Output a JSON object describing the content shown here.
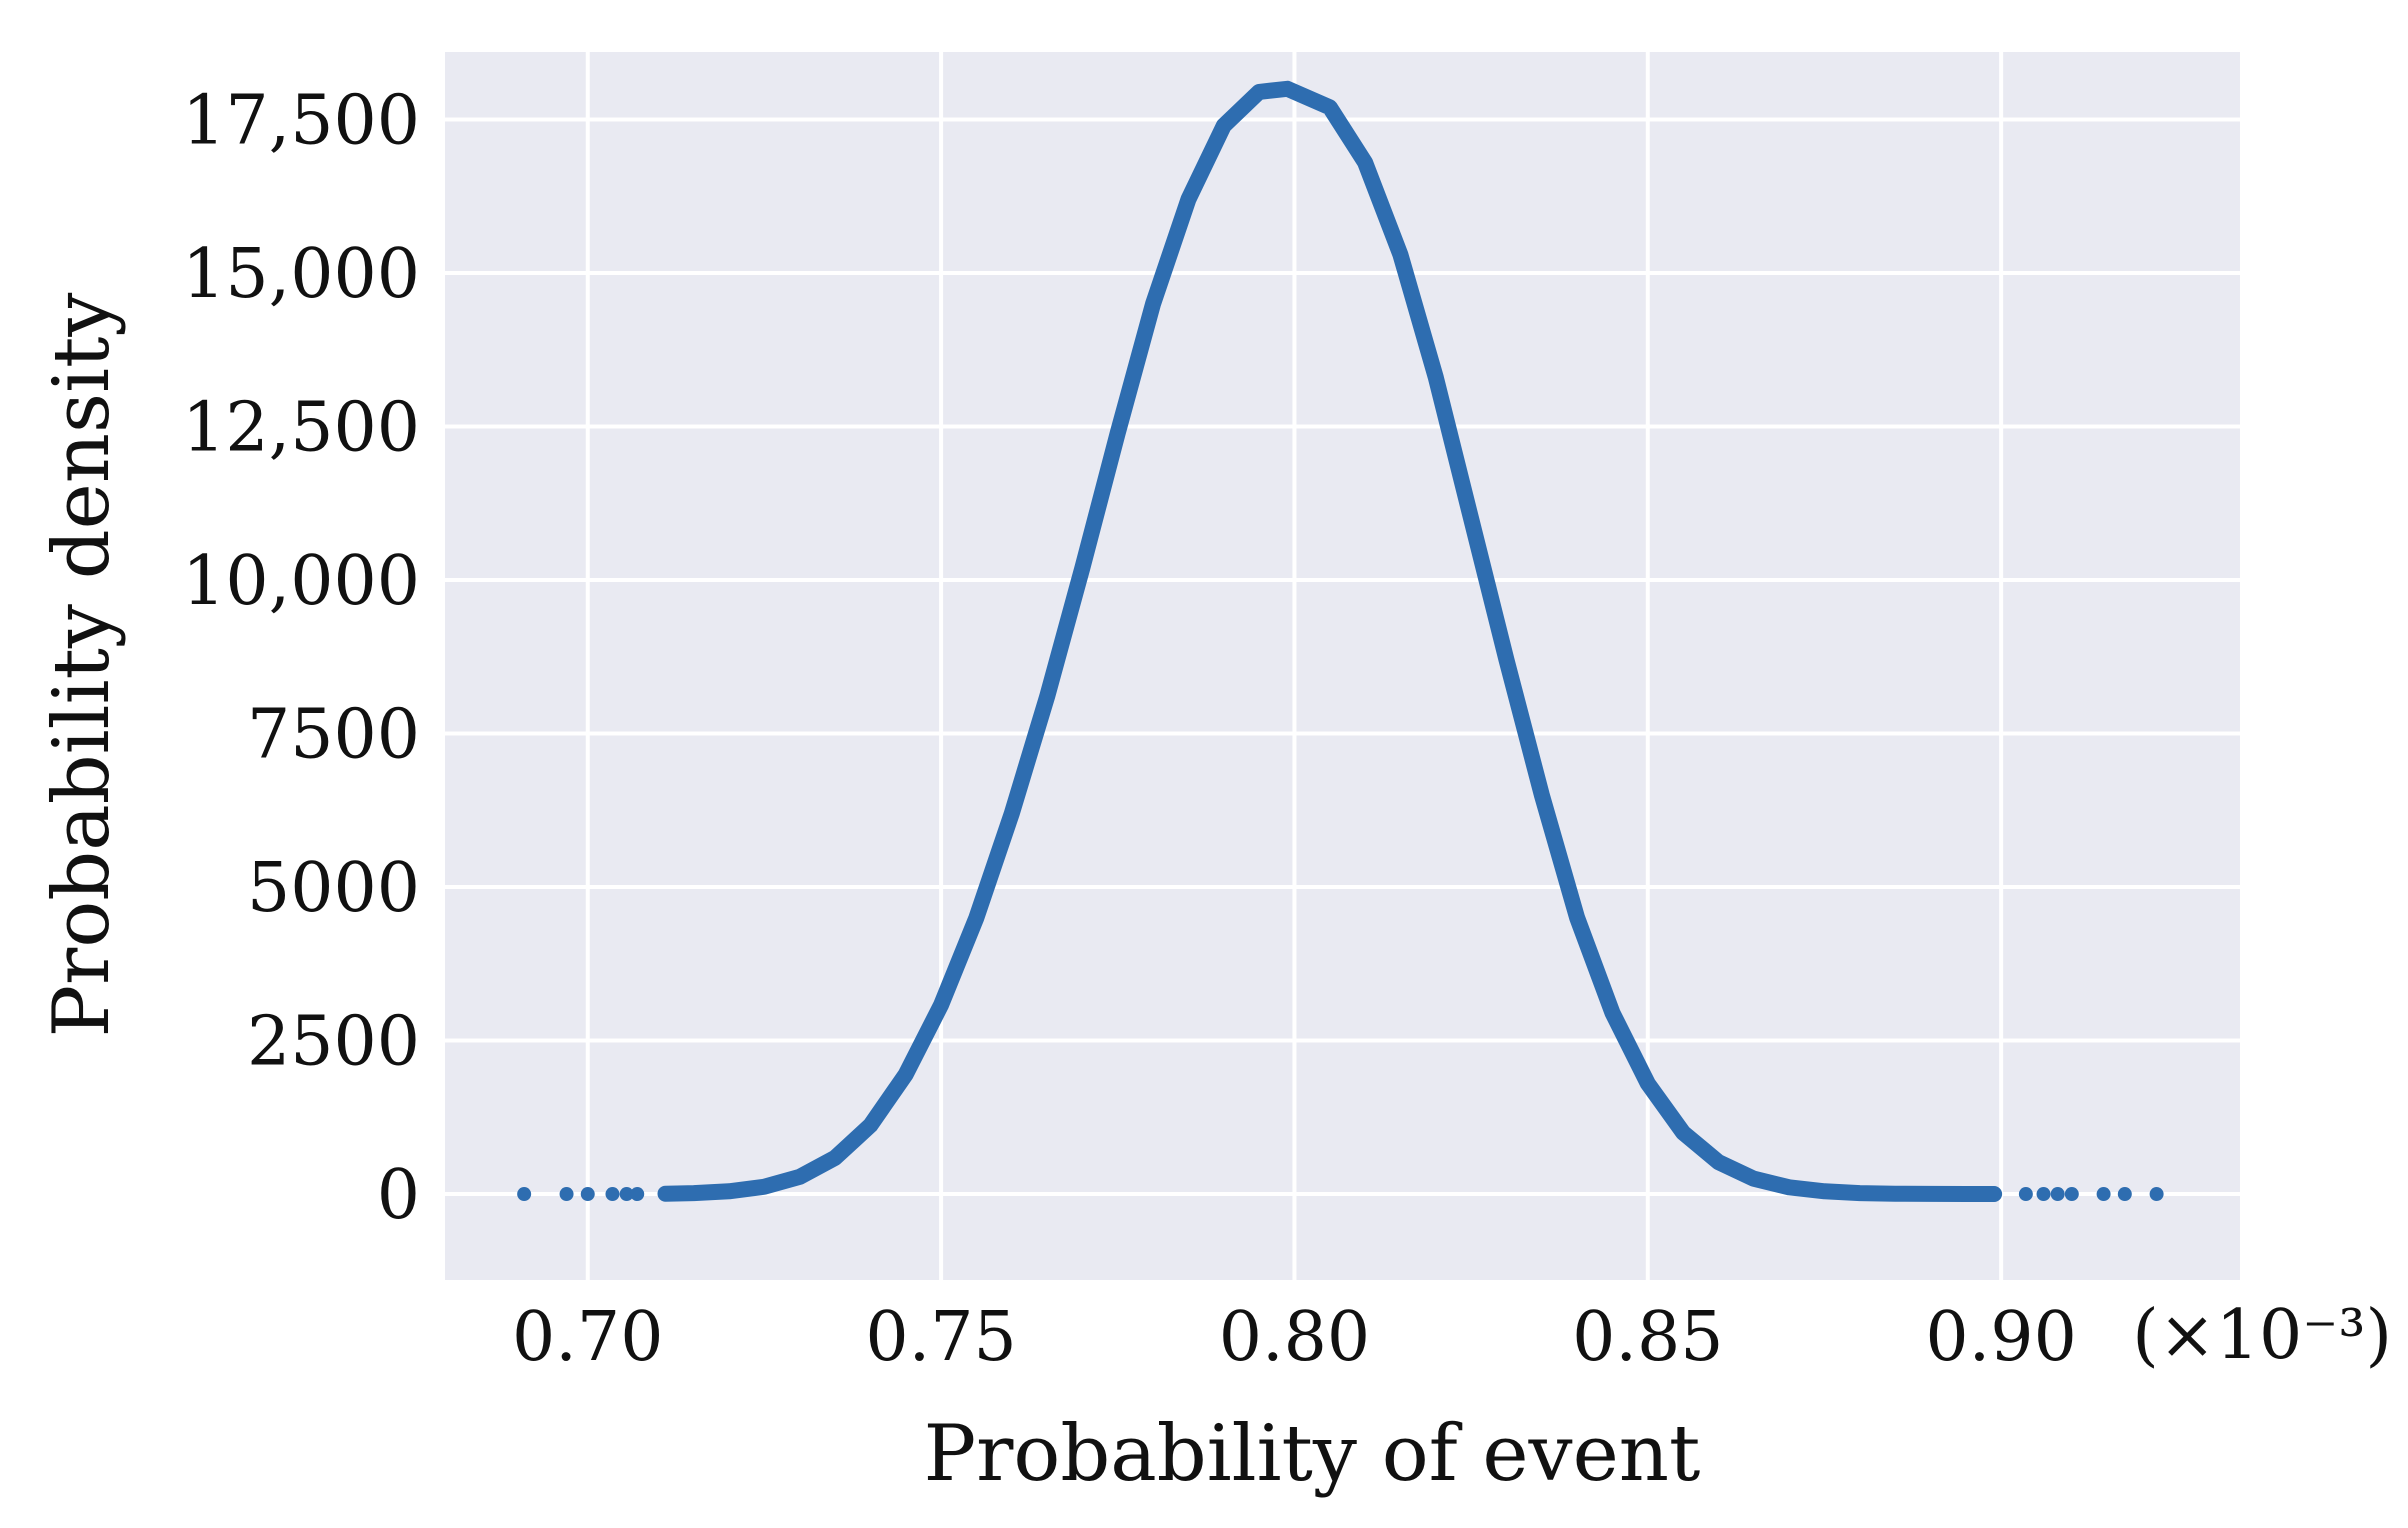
{
  "chart_data": {
    "type": "scatter",
    "xlabel": "Probability of event",
    "ylabel": "Probability density",
    "x_scale_note": "(×10⁻³)",
    "x_unit_multiplier": 0.001,
    "xlim": [
      0.6798,
      0.9338
    ],
    "ylim": [
      -1400,
      18600
    ],
    "x_ticks": [
      0.7,
      0.75,
      0.8,
      0.85,
      0.9
    ],
    "x_tick_labels": [
      "0.70",
      "0.75",
      "0.80",
      "0.85",
      "0.90"
    ],
    "y_ticks": [
      0,
      2500,
      5000,
      7500,
      10000,
      12500,
      15000,
      17500
    ],
    "y_tick_labels": [
      "0",
      "2500",
      "5000",
      "7500",
      "10,000",
      "12,500",
      "15,000",
      "17,500"
    ],
    "grid": true,
    "background_color": "#e9eaf2",
    "grid_color": "#ffffff",
    "marker_color": "#2e6db0",
    "series": [
      {
        "x": [
          0.691,
          0.697,
          0.7,
          0.7035,
          0.7055,
          0.707,
          0.711,
          0.715,
          0.72,
          0.725,
          0.73,
          0.735,
          0.74,
          0.745,
          0.75,
          0.755,
          0.76,
          0.765,
          0.77,
          0.775,
          0.78,
          0.785,
          0.79,
          0.795,
          0.799,
          0.805,
          0.81,
          0.815,
          0.82,
          0.825,
          0.83,
          0.835,
          0.84,
          0.845,
          0.85,
          0.855,
          0.86,
          0.865,
          0.87,
          0.875,
          0.88,
          0.885,
          0.89,
          0.895,
          0.899,
          0.9035,
          0.906,
          0.908,
          0.91,
          0.9145,
          0.9175,
          0.922
        ],
        "y": [
          0,
          0,
          0,
          0,
          0,
          0,
          5,
          15,
          45,
          120,
          280,
          590,
          1120,
          1950,
          3080,
          4500,
          6200,
          8100,
          10200,
          12400,
          14500,
          16200,
          17400,
          17950,
          18000,
          17700,
          16800,
          15300,
          13300,
          11000,
          8700,
          6500,
          4500,
          2950,
          1800,
          1000,
          520,
          250,
          110,
          45,
          15,
          5,
          2,
          1,
          0,
          0,
          0,
          0,
          0,
          0,
          0,
          0
        ]
      }
    ]
  }
}
